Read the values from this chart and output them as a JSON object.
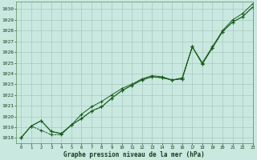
{
  "title": "Graphe pression niveau de la mer (hPa)",
  "background_color": "#c8e8e0",
  "grid_color": "#a8c8c0",
  "line_color": "#1a5c1a",
  "xlim": [
    -0.5,
    23
  ],
  "ylim": [
    1017.5,
    1030.7
  ],
  "yticks": [
    1018,
    1019,
    1020,
    1021,
    1022,
    1023,
    1024,
    1025,
    1026,
    1027,
    1028,
    1029,
    1030
  ],
  "xticks": [
    0,
    1,
    2,
    3,
    4,
    5,
    6,
    7,
    8,
    9,
    10,
    11,
    12,
    13,
    14,
    15,
    16,
    17,
    18,
    19,
    20,
    21,
    22,
    23
  ],
  "series1": [
    1018.0,
    1019.1,
    1019.6,
    1018.6,
    1018.4,
    1019.2,
    1019.8,
    1020.5,
    1020.9,
    1021.7,
    1022.4,
    1022.9,
    1023.4,
    1023.7,
    1023.6,
    1023.4,
    1023.5,
    1026.5,
    1024.9,
    1026.4,
    1027.9,
    1028.8,
    1029.3,
    1030.2
  ],
  "series2": [
    1018.0,
    1019.1,
    1019.6,
    1018.6,
    1018.4,
    1019.2,
    1020.2,
    1020.9,
    1021.4,
    1022.0,
    1022.6,
    1023.0,
    1023.5,
    1023.8,
    1023.7,
    1023.4,
    1023.6,
    1026.5,
    1025.0,
    1026.5,
    1028.0,
    1029.0,
    1029.6,
    1030.5
  ],
  "series3": [
    1018.0,
    1019.1,
    1018.7,
    1018.3,
    1018.3,
    1019.2,
    1019.8,
    1020.5,
    1020.9,
    1021.7,
    1022.4,
    1022.9,
    1023.4,
    1023.7,
    1023.6,
    1023.4,
    1023.5,
    1026.5,
    1024.9,
    1026.4,
    1027.9,
    1028.8,
    1029.3,
    1030.2
  ]
}
